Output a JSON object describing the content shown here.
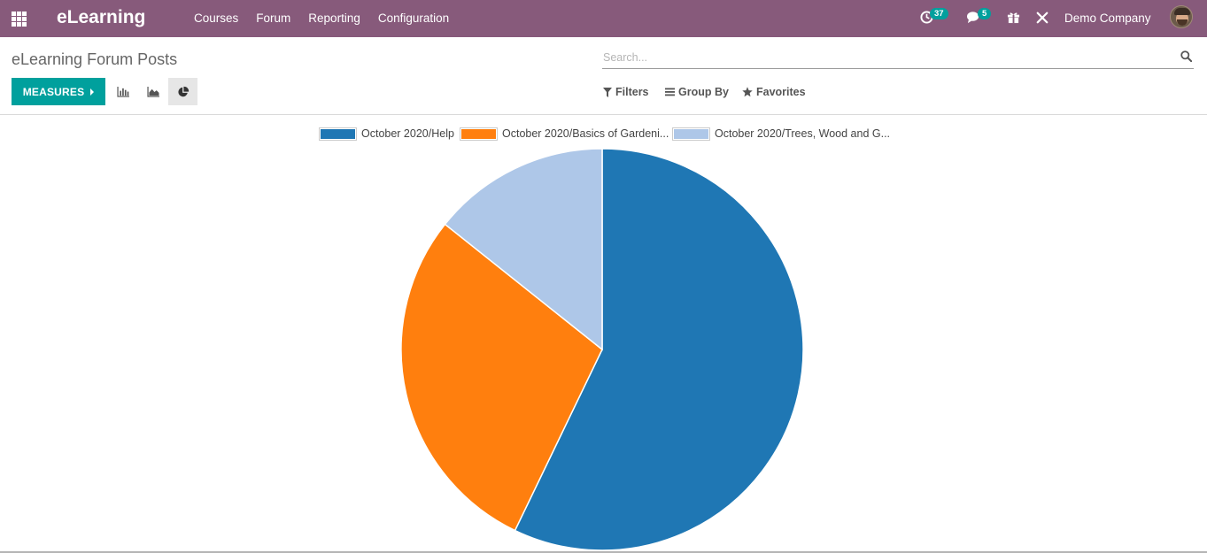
{
  "navbar": {
    "brand": "eLearning",
    "menu": [
      "Courses",
      "Forum",
      "Reporting",
      "Configuration"
    ],
    "activity_count": "37",
    "message_count": "5",
    "company": "Demo Company"
  },
  "control_panel": {
    "title": "eLearning Forum Posts",
    "search_placeholder": "Search...",
    "measures_label": "MEASURES",
    "filters_label": "Filters",
    "groupby_label": "Group By",
    "favorites_label": "Favorites"
  },
  "colors": {
    "navbar": "#875a7b",
    "primary": "#00a09d",
    "series": [
      "#1f77b4",
      "#ff7f0e",
      "#aec7e8"
    ]
  },
  "chart_data": {
    "type": "pie",
    "categories": [
      "October 2020/Help",
      "October 2020/Basics of Gardeni...",
      "October 2020/Trees, Wood and G..."
    ],
    "values": [
      4,
      2,
      1
    ],
    "legend": "top"
  }
}
